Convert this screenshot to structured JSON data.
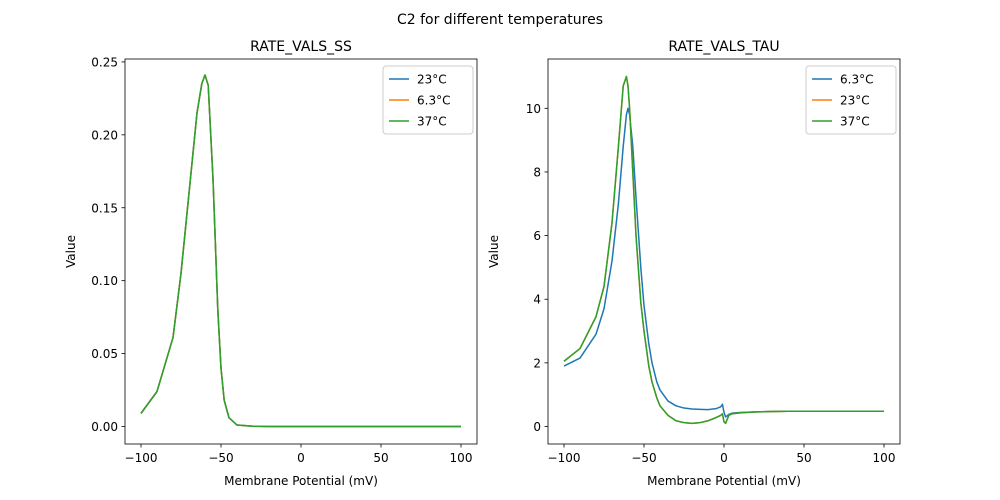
{
  "suptitle": "C2 for different temperatures",
  "chart_data": [
    {
      "type": "line",
      "title": "RATE_VALS_SS",
      "xlabel": "Membrane Potential (mV)",
      "ylabel": "Value",
      "xlim": [
        -110,
        110
      ],
      "ylim": [
        -0.012,
        0.252
      ],
      "xticks": [
        -100,
        -50,
        0,
        50,
        100
      ],
      "xtick_labels": [
        "−100",
        "−50",
        "0",
        "50",
        "100"
      ],
      "yticks": [
        0.0,
        0.05,
        0.1,
        0.15,
        0.2,
        0.25
      ],
      "ytick_labels": [
        "0.00",
        "0.05",
        "0.10",
        "0.15",
        "0.20",
        "0.25"
      ],
      "legend": "top-right",
      "grid": false,
      "series": [
        {
          "name": "23°C",
          "color": "#1f77b4",
          "x": [
            -100,
            -90,
            -80,
            -75,
            -70,
            -65,
            -62,
            -60,
            -58,
            -55,
            -52,
            -50,
            -48,
            -45,
            -40,
            -30,
            -20,
            -10,
            0,
            50,
            100
          ],
          "y": [
            0.009,
            0.024,
            0.061,
            0.105,
            0.16,
            0.215,
            0.235,
            0.241,
            0.234,
            0.17,
            0.08,
            0.04,
            0.018,
            0.006,
            0.001,
            0.0002,
            0.0,
            0.0,
            0.0,
            0.0,
            0.0
          ]
        },
        {
          "name": "6.3°C",
          "color": "#ff7f0e",
          "x": [
            -100,
            -90,
            -80,
            -75,
            -70,
            -65,
            -62,
            -60,
            -58,
            -55,
            -52,
            -50,
            -48,
            -45,
            -40,
            -30,
            -20,
            -10,
            0,
            50,
            100
          ],
          "y": [
            0.009,
            0.024,
            0.061,
            0.105,
            0.16,
            0.215,
            0.235,
            0.241,
            0.234,
            0.17,
            0.08,
            0.04,
            0.018,
            0.006,
            0.001,
            0.0002,
            0.0,
            0.0,
            0.0,
            0.0,
            0.0
          ]
        },
        {
          "name": "37°C",
          "color": "#2ca02c",
          "x": [
            -100,
            -90,
            -80,
            -75,
            -70,
            -65,
            -62,
            -60,
            -58,
            -55,
            -52,
            -50,
            -48,
            -45,
            -40,
            -30,
            -20,
            -10,
            0,
            50,
            100
          ],
          "y": [
            0.009,
            0.024,
            0.061,
            0.105,
            0.16,
            0.215,
            0.235,
            0.241,
            0.234,
            0.17,
            0.08,
            0.04,
            0.018,
            0.006,
            0.001,
            0.0002,
            0.0,
            0.0,
            0.0,
            0.0,
            0.0
          ]
        }
      ]
    },
    {
      "type": "line",
      "title": "RATE_VALS_TAU",
      "xlabel": "Membrane Potential (mV)",
      "ylabel": "Value",
      "xlim": [
        -110,
        110
      ],
      "ylim": [
        -0.55,
        11.55
      ],
      "xticks": [
        -100,
        -50,
        0,
        50,
        100
      ],
      "xtick_labels": [
        "−100",
        "−50",
        "0",
        "50",
        "100"
      ],
      "yticks": [
        0,
        2,
        4,
        6,
        8,
        10
      ],
      "ytick_labels": [
        "0",
        "2",
        "4",
        "6",
        "8",
        "10"
      ],
      "legend": "top-right",
      "grid": false,
      "series": [
        {
          "name": "6.3°C",
          "color": "#1f77b4",
          "x": [
            -100,
            -90,
            -80,
            -75,
            -70,
            -66,
            -63,
            -61,
            -60,
            -59,
            -57,
            -55,
            -52,
            -50,
            -47,
            -45,
            -42,
            -40,
            -35,
            -30,
            -25,
            -20,
            -15,
            -10,
            -5,
            -2,
            -1,
            0,
            1,
            3,
            5,
            10,
            20,
            30,
            40,
            50,
            70,
            100
          ],
          "y": [
            1.9,
            2.15,
            2.9,
            3.7,
            5.2,
            7.0,
            8.8,
            9.8,
            10.0,
            9.8,
            8.8,
            7.2,
            5.0,
            3.8,
            2.6,
            2.0,
            1.4,
            1.15,
            0.8,
            0.65,
            0.58,
            0.55,
            0.54,
            0.53,
            0.56,
            0.62,
            0.7,
            0.45,
            0.3,
            0.38,
            0.42,
            0.44,
            0.46,
            0.47,
            0.48,
            0.48,
            0.48,
            0.48
          ]
        },
        {
          "name": "23°C",
          "color": "#ff7f0e",
          "x": [
            -100,
            -90,
            -80,
            -75,
            -70,
            -66,
            -63,
            -61,
            -60,
            -59,
            -57,
            -55,
            -52,
            -50,
            -47,
            -45,
            -42,
            -40,
            -35,
            -30,
            -25,
            -20,
            -15,
            -10,
            -5,
            -2,
            -1,
            0,
            1,
            3,
            5,
            10,
            20,
            30,
            40,
            50,
            70,
            100
          ],
          "y": [
            2.05,
            2.45,
            3.45,
            4.4,
            6.4,
            8.8,
            10.7,
            11.0,
            10.7,
            10.0,
            8.0,
            6.0,
            3.9,
            3.0,
            1.9,
            1.4,
            0.9,
            0.65,
            0.35,
            0.18,
            0.12,
            0.1,
            0.12,
            0.18,
            0.28,
            0.35,
            0.4,
            0.15,
            0.1,
            0.35,
            0.4,
            0.43,
            0.46,
            0.47,
            0.48,
            0.48,
            0.48,
            0.48
          ]
        },
        {
          "name": "37°C",
          "color": "#2ca02c",
          "x": [
            -100,
            -90,
            -80,
            -75,
            -70,
            -66,
            -63,
            -61,
            -60,
            -59,
            -57,
            -55,
            -52,
            -50,
            -47,
            -45,
            -42,
            -40,
            -35,
            -30,
            -25,
            -20,
            -15,
            -10,
            -5,
            -2,
            -1,
            0,
            1,
            3,
            5,
            10,
            20,
            30,
            40,
            50,
            70,
            100
          ],
          "y": [
            2.05,
            2.45,
            3.45,
            4.4,
            6.4,
            8.8,
            10.7,
            11.0,
            10.7,
            10.0,
            8.0,
            6.0,
            3.9,
            3.0,
            1.9,
            1.4,
            0.9,
            0.65,
            0.35,
            0.18,
            0.12,
            0.1,
            0.12,
            0.18,
            0.28,
            0.35,
            0.4,
            0.15,
            0.1,
            0.35,
            0.4,
            0.43,
            0.46,
            0.47,
            0.48,
            0.48,
            0.48,
            0.48
          ]
        }
      ]
    }
  ]
}
